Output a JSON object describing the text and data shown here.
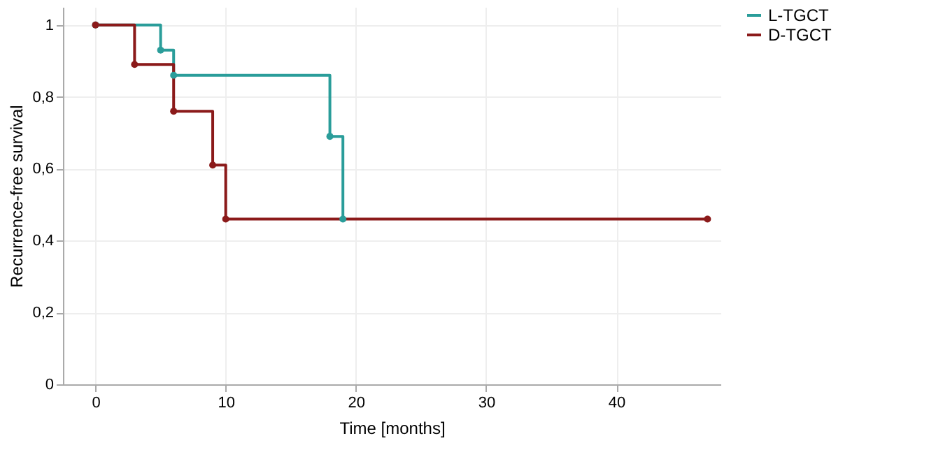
{
  "chart_data": {
    "type": "step",
    "xlabel": "Time [months]",
    "ylabel": "Recurrence-free survival",
    "series": [
      {
        "name": "L-TGCT",
        "color": "#2a9d9a",
        "x": [
          0,
          5,
          6,
          18,
          19
        ],
        "values": [
          1,
          0.93,
          0.86,
          0.69,
          0.46
        ]
      },
      {
        "name": "D-TGCT",
        "color": "#8b1a1a",
        "x": [
          0,
          3,
          6,
          9,
          10,
          47
        ],
        "values": [
          1,
          0.89,
          0.76,
          0.61,
          0.46,
          0.46
        ]
      }
    ],
    "xlim": [
      -2.5,
      48
    ],
    "xticks": [
      0,
      10,
      20,
      30,
      40
    ],
    "ylim": [
      0,
      1.05
    ],
    "yticks": [
      0,
      {
        "value": 0.2,
        "label": "0,2"
      },
      {
        "value": 0.4,
        "label": "0,4"
      },
      {
        "value": 0.6,
        "label": "0,6"
      },
      {
        "value": 0.8,
        "label": "0,8"
      },
      1
    ],
    "grid": true,
    "legend": "top right",
    "marker": "circle",
    "line_style": "solid"
  }
}
